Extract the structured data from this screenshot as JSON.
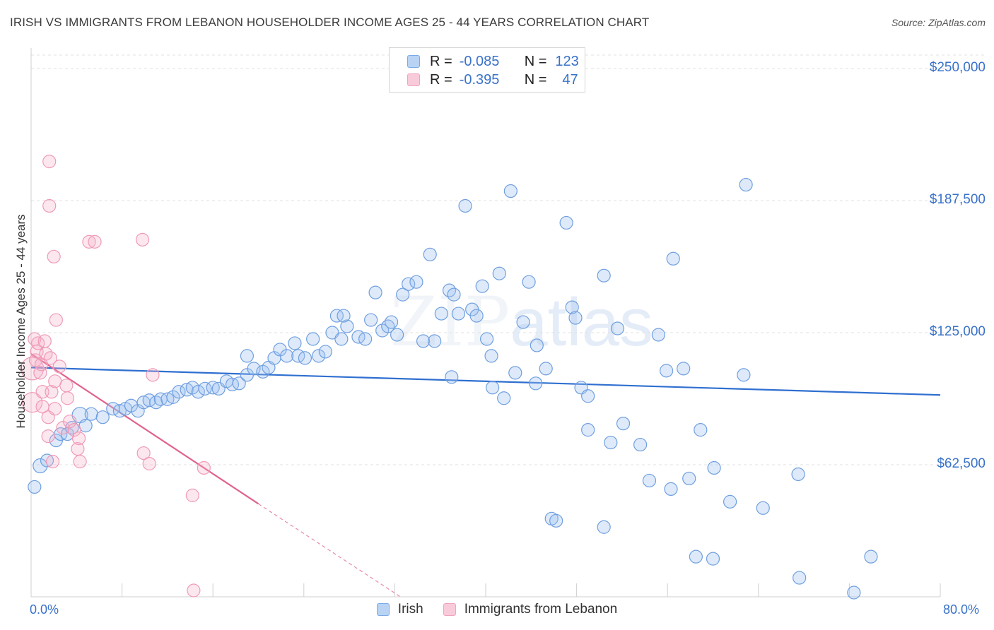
{
  "title": "IRISH VS IMMIGRANTS FROM LEBANON HOUSEHOLDER INCOME AGES 25 - 44 YEARS CORRELATION CHART",
  "source": "Source: ZipAtlas.com",
  "watermark": {
    "zip": "ZIP",
    "atlas": "atlas"
  },
  "legend": {
    "rows": [
      {
        "r_label": "R =",
        "r_value": "-0.085",
        "n_label": "N =",
        "n_value": "123",
        "color": "#a8c8f0"
      },
      {
        "r_label": "R =",
        "r_value": "-0.395",
        "n_label": "N =",
        "n_value": "47",
        "color": "#f5b8cc"
      }
    ]
  },
  "bottom_legend": {
    "irish": "Irish",
    "lebanon": "Immigrants from Lebanon"
  },
  "chart_data": {
    "type": "scatter",
    "title": "IRISH VS IMMIGRANTS FROM LEBANON HOUSEHOLDER INCOME AGES 25 - 44 YEARS CORRELATION CHART",
    "xlabel": "",
    "ylabel": "Householder Income Ages 25 - 44 years",
    "xlim": [
      0,
      80
    ],
    "ylim": [
      0,
      250000
    ],
    "x_tick_labels": [
      "0.0%",
      "80.0%"
    ],
    "y_tick_labels": [
      "$62,500",
      "$125,000",
      "$187,500",
      "$250,000"
    ],
    "y_tick_values": [
      62500,
      125000,
      187500,
      250000
    ],
    "grid": true,
    "legend_placement": "top-center",
    "series": [
      {
        "name": "Irish",
        "color": "#7aaae8",
        "trend": {
          "x": [
            0,
            80
          ],
          "y": [
            108500,
            95500
          ]
        },
        "points": [
          [
            0.3,
            52000,
            9
          ],
          [
            0.8,
            62000,
            10
          ],
          [
            1.4,
            64500,
            9
          ],
          [
            2.2,
            74000,
            9
          ],
          [
            2.6,
            77000,
            9
          ],
          [
            3.2,
            77000,
            9
          ],
          [
            3.6,
            80000,
            9
          ],
          [
            4.3,
            86000,
            11
          ],
          [
            4.8,
            81000,
            9
          ],
          [
            5.3,
            86500,
            9
          ],
          [
            6.3,
            85000,
            9
          ],
          [
            7.2,
            89000,
            9
          ],
          [
            7.8,
            88000,
            9
          ],
          [
            8.3,
            89000,
            9
          ],
          [
            8.8,
            90500,
            9
          ],
          [
            9.4,
            88000,
            9
          ],
          [
            9.9,
            92000,
            9
          ],
          [
            10.4,
            93000,
            9
          ],
          [
            11.0,
            92000,
            9
          ],
          [
            11.4,
            93500,
            9
          ],
          [
            12.0,
            93500,
            9
          ],
          [
            12.5,
            94500,
            9
          ],
          [
            13.0,
            97000,
            9
          ],
          [
            13.7,
            98000,
            9
          ],
          [
            14.2,
            99000,
            9
          ],
          [
            14.7,
            97000,
            9
          ],
          [
            15.3,
            98500,
            9
          ],
          [
            16.0,
            99000,
            9
          ],
          [
            16.5,
            98500,
            9
          ],
          [
            17.2,
            102000,
            9
          ],
          [
            17.7,
            100500,
            9
          ],
          [
            18.3,
            101000,
            9
          ],
          [
            19.0,
            105000,
            9
          ],
          [
            19.6,
            108000,
            9
          ],
          [
            19.0,
            114000,
            9
          ],
          [
            20.4,
            106500,
            9
          ],
          [
            20.9,
            108500,
            9
          ],
          [
            21.4,
            113000,
            9
          ],
          [
            21.9,
            117000,
            9
          ],
          [
            22.5,
            114000,
            9
          ],
          [
            23.2,
            120000,
            9
          ],
          [
            23.5,
            114000,
            9
          ],
          [
            24.1,
            113000,
            9
          ],
          [
            24.8,
            122000,
            9
          ],
          [
            25.3,
            114000,
            9
          ],
          [
            25.9,
            116000,
            9
          ],
          [
            26.5,
            125000,
            9
          ],
          [
            27.3,
            122000,
            9
          ],
          [
            27.8,
            128000,
            9
          ],
          [
            26.9,
            133000,
            9
          ],
          [
            27.5,
            133000,
            9
          ],
          [
            28.8,
            123000,
            9
          ],
          [
            29.4,
            122000,
            9
          ],
          [
            29.9,
            131000,
            9
          ],
          [
            30.3,
            144000,
            9
          ],
          [
            30.9,
            126000,
            9
          ],
          [
            31.4,
            128000,
            9
          ],
          [
            31.7,
            130000,
            9
          ],
          [
            32.2,
            124000,
            9
          ],
          [
            32.7,
            143000,
            9
          ],
          [
            33.2,
            148000,
            9
          ],
          [
            33.9,
            149000,
            9
          ],
          [
            34.5,
            121000,
            9
          ],
          [
            35.1,
            162000,
            9
          ],
          [
            35.5,
            121000,
            9
          ],
          [
            36.1,
            134000,
            9
          ],
          [
            36.8,
            145000,
            9
          ],
          [
            37.2,
            143000,
            9
          ],
          [
            37.6,
            134000,
            9
          ],
          [
            37.0,
            104000,
            9
          ],
          [
            38.2,
            185000,
            9
          ],
          [
            38.8,
            136000,
            9
          ],
          [
            39.2,
            133000,
            9
          ],
          [
            39.7,
            147000,
            9
          ],
          [
            40.1,
            122000,
            9
          ],
          [
            40.5,
            114000,
            9
          ],
          [
            40.6,
            99000,
            9
          ],
          [
            41.2,
            153000,
            9
          ],
          [
            41.6,
            94000,
            9
          ],
          [
            42.2,
            192000,
            9
          ],
          [
            42.6,
            106000,
            9
          ],
          [
            43.3,
            130000,
            9
          ],
          [
            43.8,
            149000,
            9
          ],
          [
            44.4,
            101000,
            9
          ],
          [
            44.5,
            119000,
            9
          ],
          [
            45.3,
            108000,
            9
          ],
          [
            45.8,
            37000,
            9
          ],
          [
            46.2,
            36000,
            9
          ],
          [
            47.1,
            177000,
            9
          ],
          [
            47.6,
            137000,
            9
          ],
          [
            47.9,
            132000,
            9
          ],
          [
            48.4,
            99000,
            9
          ],
          [
            49.0,
            95000,
            9
          ],
          [
            49.0,
            79000,
            9
          ],
          [
            50.4,
            33000,
            9
          ],
          [
            50.4,
            152000,
            9
          ],
          [
            51.0,
            73000,
            9
          ],
          [
            51.6,
            127000,
            9
          ],
          [
            52.1,
            82000,
            9
          ],
          [
            53.6,
            72000,
            9
          ],
          [
            54.4,
            55000,
            9
          ],
          [
            55.2,
            124000,
            9
          ],
          [
            55.9,
            107000,
            9
          ],
          [
            56.5,
            160000,
            9
          ],
          [
            56.3,
            51000,
            9
          ],
          [
            57.4,
            108000,
            9
          ],
          [
            57.9,
            56000,
            9
          ],
          [
            58.5,
            19000,
            9
          ],
          [
            58.9,
            79000,
            9
          ],
          [
            60.0,
            18000,
            9
          ],
          [
            60.1,
            61000,
            9
          ],
          [
            61.5,
            45000,
            9
          ],
          [
            62.7,
            105000,
            9
          ],
          [
            62.9,
            195000,
            9
          ],
          [
            64.4,
            42000,
            9
          ],
          [
            67.5,
            58000,
            9
          ],
          [
            67.6,
            9000,
            9
          ],
          [
            72.4,
            2000,
            9
          ],
          [
            73.9,
            19000,
            9
          ]
        ]
      },
      {
        "name": "Immigrants from Lebanon",
        "color": "#f3a3bd",
        "trend": {
          "x": [
            0,
            20
          ],
          "y": [
            115000,
            44000
          ],
          "dashed_to": {
            "x": 32.5,
            "y": 0
          }
        },
        "points": [
          [
            0.1,
            108000,
            16
          ],
          [
            0.1,
            92000,
            14
          ],
          [
            0.3,
            122000,
            9
          ],
          [
            0.4,
            112000,
            9
          ],
          [
            0.5,
            116000,
            9
          ],
          [
            0.6,
            120000,
            9
          ],
          [
            0.8,
            106000,
            9
          ],
          [
            0.9,
            110000,
            9
          ],
          [
            1.0,
            90000,
            9
          ],
          [
            1.0,
            97000,
            9
          ],
          [
            1.2,
            121000,
            9
          ],
          [
            1.3,
            115000,
            9
          ],
          [
            1.5,
            85000,
            9
          ],
          [
            1.5,
            76000,
            9
          ],
          [
            1.6,
            206000,
            9
          ],
          [
            1.6,
            185000,
            9
          ],
          [
            1.7,
            113000,
            9
          ],
          [
            1.8,
            97000,
            9
          ],
          [
            1.9,
            64000,
            9
          ],
          [
            2.0,
            161000,
            9
          ],
          [
            2.1,
            102000,
            9
          ],
          [
            2.1,
            89000,
            9
          ],
          [
            2.2,
            131000,
            9
          ],
          [
            2.5,
            109000,
            9
          ],
          [
            2.8,
            80000,
            9
          ],
          [
            3.1,
            100000,
            9
          ],
          [
            3.2,
            94000,
            9
          ],
          [
            3.4,
            83000,
            9
          ],
          [
            3.8,
            79000,
            9
          ],
          [
            4.1,
            70000,
            9
          ],
          [
            4.2,
            75000,
            9
          ],
          [
            5.1,
            168000,
            9
          ],
          [
            5.6,
            168000,
            9
          ],
          [
            9.8,
            169000,
            9
          ],
          [
            10.7,
            105000,
            9
          ],
          [
            9.9,
            68000,
            9
          ],
          [
            10.4,
            63000,
            9
          ],
          [
            14.3,
            3000,
            9
          ],
          [
            14.2,
            48000,
            9
          ],
          [
            15.2,
            61000,
            9
          ],
          [
            4.3,
            64000,
            9
          ]
        ]
      }
    ]
  }
}
